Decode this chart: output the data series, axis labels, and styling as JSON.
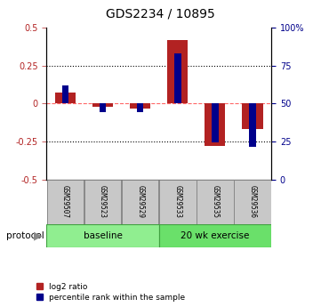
{
  "title": "GDS2234 / 10895",
  "samples": [
    "GSM29507",
    "GSM29523",
    "GSM29529",
    "GSM29533",
    "GSM29535",
    "GSM29536"
  ],
  "log2_ratio": [
    0.07,
    -0.02,
    -0.03,
    0.42,
    -0.28,
    -0.17
  ],
  "percentile_rank_left_axis": [
    0.12,
    -0.055,
    -0.055,
    0.33,
    -0.255,
    -0.285
  ],
  "left_ylim": [
    -0.5,
    0.5
  ],
  "left_yticks": [
    -0.5,
    -0.25,
    0,
    0.25,
    0.5
  ],
  "left_yticklabels": [
    "-0.5",
    "-0.25",
    "0",
    "0.25",
    "0.5"
  ],
  "right_ylim": [
    0,
    100
  ],
  "right_yticks": [
    0,
    25,
    50,
    75,
    100
  ],
  "right_yticklabels": [
    "0",
    "25",
    "50",
    "75",
    "100%"
  ],
  "bar_color_red": "#B22222",
  "bar_color_blue": "#00008B",
  "dashed_line_color": "#FF6666",
  "dotted_line_color": "#000000",
  "protocol_label": "protocol",
  "legend_red": "log2 ratio",
  "legend_blue": "percentile rank within the sample",
  "red_bar_width": 0.55,
  "blue_bar_width": 0.18,
  "title_fontsize": 10
}
